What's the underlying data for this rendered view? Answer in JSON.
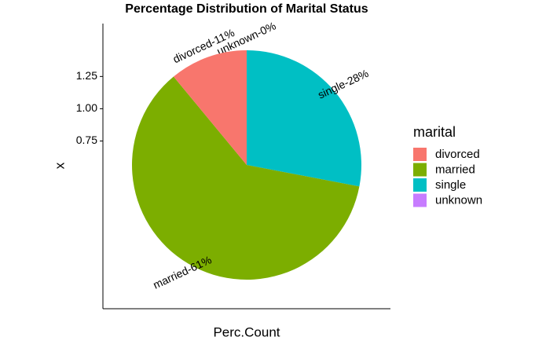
{
  "chart_data": {
    "type": "pie",
    "title": "Percentage Distribution of Marital Status",
    "x_label": "Perc.Count",
    "y_label": "x",
    "legend_title": "marital",
    "categories": [
      "divorced",
      "married",
      "single",
      "unknown"
    ],
    "values": [
      11,
      61,
      28,
      0
    ],
    "value_labels": [
      "divorced-11%",
      "married-61%",
      "single-28%",
      "unknown-0%"
    ],
    "colors": [
      "#F8766D",
      "#7CAE00",
      "#00BFC4",
      "#C77CFF"
    ],
    "ylim": [
      -0.55,
      1.66
    ],
    "yticks": [
      0.75,
      {
        "value": 1,
        "label": "1.00"
      },
      1.25
    ],
    "legend_position": "right"
  }
}
